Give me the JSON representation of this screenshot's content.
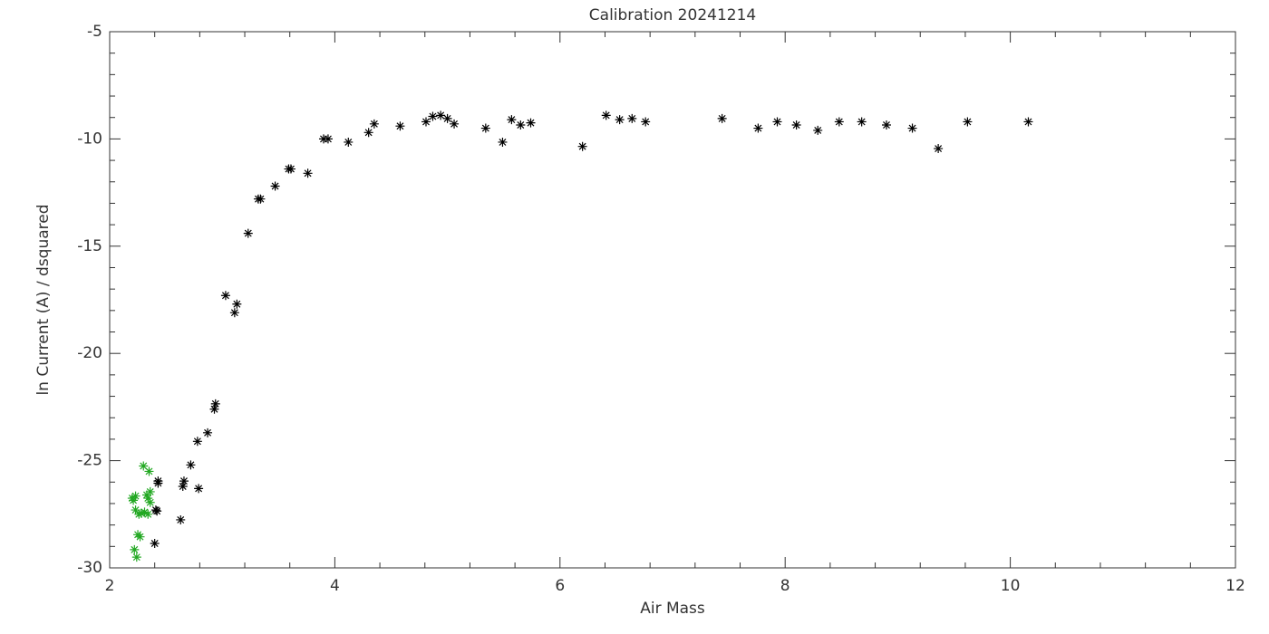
{
  "chart_data": {
    "type": "scatter",
    "title": "Calibration 20241214",
    "xlabel": "Air Mass",
    "ylabel": "ln Current (A) / dsquared",
    "xlim": [
      2,
      12
    ],
    "ylim": [
      -30,
      -5
    ],
    "xticks": [
      2,
      4,
      6,
      8,
      10,
      12
    ],
    "yticks": [
      -30,
      -25,
      -20,
      -15,
      -10,
      -5
    ],
    "series": [
      {
        "color": "#000000",
        "x": [
          2.41,
          2.42,
          2.4,
          2.43,
          2.43,
          2.63,
          2.65,
          2.66,
          2.72,
          2.78,
          2.79,
          2.87,
          2.93,
          2.94,
          3.03,
          3.11,
          3.13,
          3.23,
          3.32,
          3.34,
          3.47,
          3.59,
          3.61,
          3.76,
          3.9,
          3.94,
          4.12,
          4.3,
          4.35,
          4.58,
          4.81,
          4.87,
          4.94,
          5.0,
          5.06,
          5.34,
          5.49,
          5.57,
          5.65,
          5.74,
          6.2,
          6.41,
          6.53,
          6.64,
          6.76,
          7.44,
          7.76,
          7.93,
          8.1,
          8.29,
          8.48,
          8.68,
          8.9,
          9.13,
          9.36,
          9.62,
          10.16
        ],
        "values": [
          -27.3,
          -27.35,
          -28.86,
          -25.95,
          -26.05,
          -27.76,
          -26.2,
          -25.95,
          -25.2,
          -24.1,
          -26.3,
          -23.7,
          -22.6,
          -22.35,
          -17.3,
          -18.1,
          -17.7,
          -14.4,
          -12.8,
          -12.8,
          -12.2,
          -11.4,
          -11.4,
          -11.6,
          -10.0,
          -10.0,
          -10.15,
          -9.7,
          -9.3,
          -9.4,
          -9.2,
          -8.95,
          -8.9,
          -9.05,
          -9.3,
          -9.5,
          -10.15,
          -9.1,
          -9.35,
          -9.25,
          -10.35,
          -8.9,
          -9.1,
          -9.05,
          -9.2,
          -9.05,
          -9.5,
          -9.2,
          -9.35,
          -9.6,
          -9.2,
          -9.2,
          -9.35,
          -9.5,
          -10.45,
          -9.2,
          -9.2
        ]
      },
      {
        "color": "#22a822",
        "x": [
          2.2,
          2.23,
          2.21,
          2.22,
          2.24,
          2.25,
          2.27,
          2.23,
          2.26,
          2.28,
          2.3,
          2.31,
          2.33,
          2.34,
          2.35,
          2.36,
          2.34,
          2.36
        ],
        "values": [
          -26.75,
          -26.65,
          -26.85,
          -29.15,
          -29.5,
          -28.45,
          -28.55,
          -27.3,
          -27.5,
          -27.45,
          -25.25,
          -27.4,
          -26.6,
          -27.5,
          -25.5,
          -26.45,
          -26.75,
          -26.95
        ]
      }
    ]
  }
}
